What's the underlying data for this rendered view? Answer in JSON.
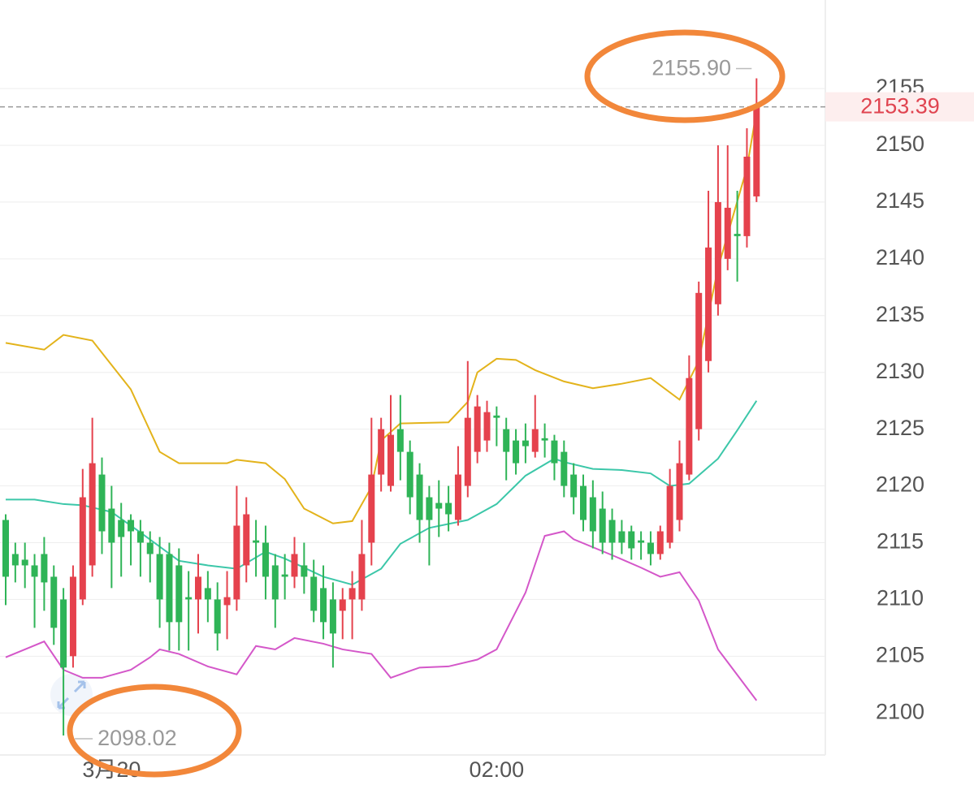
{
  "chart_data": {
    "type": "candlestick",
    "ylim": [
      2096.3,
      2162.8
    ],
    "yticks": [
      2100,
      2105,
      2110,
      2115,
      2120,
      2125,
      2130,
      2135,
      2140,
      2145,
      2150,
      2155
    ],
    "grid": true,
    "up_color": "#e5424d",
    "down_color": "#2fb457",
    "categories": [
      null,
      null,
      null,
      null,
      null,
      null,
      null,
      null,
      null,
      null,
      null,
      "3月20",
      null,
      null,
      null,
      null,
      null,
      null,
      null,
      null,
      null,
      null,
      null,
      null,
      null,
      null,
      null,
      null,
      null,
      null,
      null,
      null,
      null,
      null,
      null,
      null,
      null,
      null,
      null,
      null,
      null,
      null,
      null,
      null,
      null,
      null,
      null,
      null,
      null,
      null,
      null,
      "02:00",
      null,
      null,
      null,
      null,
      null,
      null,
      null,
      null,
      null,
      null,
      null,
      null,
      null,
      null,
      null,
      null,
      null,
      null,
      null,
      null,
      null,
      null,
      null,
      null,
      null,
      null,
      null
    ],
    "open": [
      2117,
      2114,
      2113.5,
      2113,
      2114,
      2112,
      2110,
      2105,
      2110,
      2113,
      2121,
      2118,
      2117,
      2117,
      2116,
      2115,
      2114,
      2114,
      2113,
      2110.2,
      2110,
      2111,
      2110,
      2109.5,
      2110,
      2113,
      2115.2,
      2115,
      2113,
      2112.2,
      2112,
      2113,
      2112,
      2111,
      2110,
      2109,
      2110,
      2110,
      2115,
      2121,
      2120,
      2125,
      2123,
      2121,
      2119,
      2118.5,
      2118.5,
      2117,
      2120,
      2123,
      2124,
      2126.2,
      2125,
      2124,
      2124,
      2123,
      2124.2,
      2124,
      2123,
      2121,
      2120,
      2119,
      2118,
      2117,
      2116,
      2116,
      2115.2,
      2115,
      2114,
      2115,
      2117,
      2121,
      2125,
      2131,
      2136,
      2140,
      2142.2,
      2142,
      2145.5
    ],
    "high": [
      2117.5,
      2115,
      2115,
      2114,
      2115.5,
      2113,
      2111,
      2113,
      2121.5,
      2126,
      2122.5,
      2120,
      2118.5,
      2117.5,
      2117,
      2116,
      2115.5,
      2115,
      2114.5,
      2112.5,
      2114,
      2112.5,
      2111.5,
      2112.5,
      2120,
      2119,
      2117,
      2116.5,
      2114,
      2114,
      2115.5,
      2115,
      2113.5,
      2113,
      2111.5,
      2111,
      2112.5,
      2117,
      2126,
      2126,
      2128,
      2128,
      2124,
      2122,
      2120,
      2120.5,
      2120,
      2123.5,
      2131,
      2128,
      2127.5,
      2127,
      2126,
      2125,
      2125.5,
      2128,
      2125.5,
      2124.5,
      2124,
      2122,
      2121,
      2120.5,
      2119.5,
      2118,
      2117,
      2116.5,
      2116,
      2116,
      2116.5,
      2121.5,
      2124,
      2131.5,
      2138,
      2146,
      2150,
      2150,
      2146,
      2151.5,
      2155.9
    ],
    "low": [
      2109.5,
      2111.5,
      2111,
      2107.5,
      2109,
      2106,
      2098.02,
      2104,
      2109.5,
      2112,
      2114,
      2111,
      2112,
      2113,
      2112,
      2111.5,
      2107.5,
      2105.5,
      2105.5,
      2105.5,
      2107,
      2108,
      2105.5,
      2106.5,
      2109,
      2111.5,
      2112,
      2110,
      2107.5,
      2110,
      2111,
      2110.5,
      2108,
      2106.5,
      2104,
      2106.5,
      2106.5,
      2109,
      2113,
      2119.5,
      2119.5,
      2120.5,
      2117.5,
      2115,
      2113,
      2115.5,
      2116,
      2116.5,
      2119,
      2122,
      2123,
      2123.5,
      2120.5,
      2121,
      2122,
      2122.5,
      2122.5,
      2120.5,
      2119,
      2117.5,
      2116,
      2114.5,
      2114,
      2113.5,
      2114,
      2113.5,
      2113.5,
      2113,
      2113.5,
      2114.5,
      2116,
      2120.5,
      2124,
      2130,
      2135,
      2139,
      2138,
      2141,
      2145
    ],
    "close": [
      2112,
      2113,
      2113,
      2112,
      2111.5,
      2107.5,
      2104,
      2112,
      2119,
      2122,
      2116,
      2115,
      2115.5,
      2116,
      2115,
      2114,
      2110,
      2108,
      2108,
      2110,
      2112,
      2110,
      2107,
      2110.2,
      2116.5,
      2117.5,
      2115,
      2112,
      2110,
      2112,
      2114,
      2112,
      2109,
      2108,
      2107,
      2110,
      2111,
      2114,
      2121,
      2125,
      2124.5,
      2123,
      2119,
      2117,
      2117,
      2118,
      2117.5,
      2121,
      2126,
      2127,
      2126.5,
      2126,
      2123,
      2122,
      2123.5,
      2125,
      2124,
      2122,
      2120,
      2119,
      2117,
      2116,
      2115,
      2115,
      2115,
      2114.5,
      2115,
      2114,
      2116,
      2120,
      2122,
      2129.5,
      2137,
      2141,
      2145,
      2144.5,
      2142,
      2149,
      2153.39
    ],
    "bands": [
      {
        "color": "#e3b31b",
        "x": [
          0,
          4,
          6,
          9,
          13,
          16,
          18,
          23,
          24,
          27,
          29,
          31,
          34,
          36,
          38,
          39,
          41,
          46,
          48,
          49,
          51,
          53,
          55,
          58,
          61,
          64,
          67,
          70,
          72,
          74,
          77,
          78
        ],
        "values": [
          2132.6,
          2132,
          2133.3,
          2132.8,
          2128.5,
          2123,
          2122,
          2122,
          2122.3,
          2122,
          2120.6,
          2118,
          2116.7,
          2116.9,
          2119.9,
          2124,
          2125.5,
          2125.6,
          2127.4,
          2130,
          2131.2,
          2131.1,
          2130.2,
          2129.2,
          2128.6,
          2129,
          2129.5,
          2127.6,
          2131,
          2139.2,
          2148,
          2153
        ]
      },
      {
        "color": "#3cc7a9",
        "x": [
          0,
          3,
          6,
          8,
          11,
          14,
          18,
          21,
          24,
          27,
          29,
          33,
          36,
          39,
          41,
          44,
          48,
          51,
          54,
          57,
          58,
          61,
          64,
          67,
          69,
          71,
          74,
          76,
          78
        ],
        "values": [
          2118.8,
          2118.8,
          2118.4,
          2118.3,
          2117.7,
          2115.9,
          2113.4,
          2113,
          2112.7,
          2114.2,
          2113.6,
          2112,
          2111.3,
          2112.7,
          2114.9,
          2116.3,
          2117,
          2118.4,
          2120.9,
          2122.4,
          2122.1,
          2121.5,
          2121.4,
          2121.1,
          2120,
          2120.2,
          2122.4,
          2124.9,
          2127.5
        ]
      },
      {
        "color": "#d457c9",
        "x": [
          0,
          2,
          4,
          6,
          8,
          10,
          13,
          15,
          16,
          18,
          21,
          24,
          26,
          28,
          30,
          33,
          35,
          38,
          40,
          43,
          46,
          49,
          51,
          54,
          56,
          58,
          59,
          63,
          66,
          68,
          70,
          72,
          74,
          78
        ],
        "values": [
          2104.9,
          2105.6,
          2106.3,
          2103.8,
          2103.1,
          2103.1,
          2103.8,
          2104.9,
          2105.6,
          2105.2,
          2104.1,
          2103.4,
          2105.9,
          2105.6,
          2106.6,
          2106.1,
          2105.6,
          2105.2,
          2103.1,
          2104,
          2104.1,
          2104.7,
          2105.6,
          2110.6,
          2115.6,
          2116,
          2115.3,
          2113.9,
          2112.8,
          2112,
          2112.4,
          2109.9,
          2105.6,
          2101.1
        ]
      }
    ],
    "last_price": 2153.39,
    "max_label": {
      "value": 2155.9,
      "label": "2155.90"
    },
    "min_label": 2098.02
  }
}
